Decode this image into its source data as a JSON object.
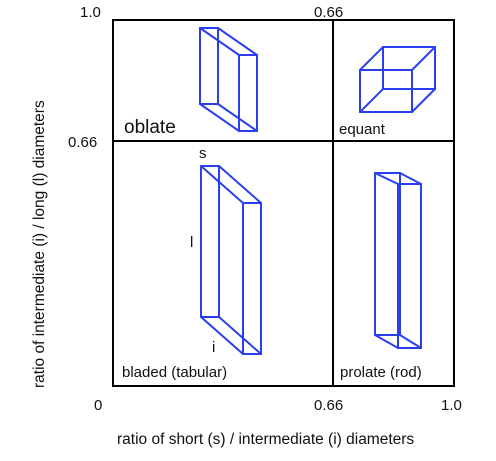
{
  "axes": {
    "x_title": "ratio of short (s) / intermediate (i) diameters",
    "y_title": "ratio of intermediate (i) / long (l) diameters",
    "x_ticks": [
      "0",
      "0.66",
      "1.0"
    ],
    "y_ticks": [
      "1.0",
      "0.66"
    ],
    "top_tick": "0.66"
  },
  "regions": {
    "oblate": "oblate",
    "equant": "equant",
    "bladed": "bladed (tabular)",
    "prolate": "prolate (rod)"
  },
  "dimensions": {
    "short": "s",
    "long": "l",
    "intermediate": "i"
  },
  "colors": {
    "shape_stroke": "#2a3ff0",
    "frame": "#000000"
  }
}
